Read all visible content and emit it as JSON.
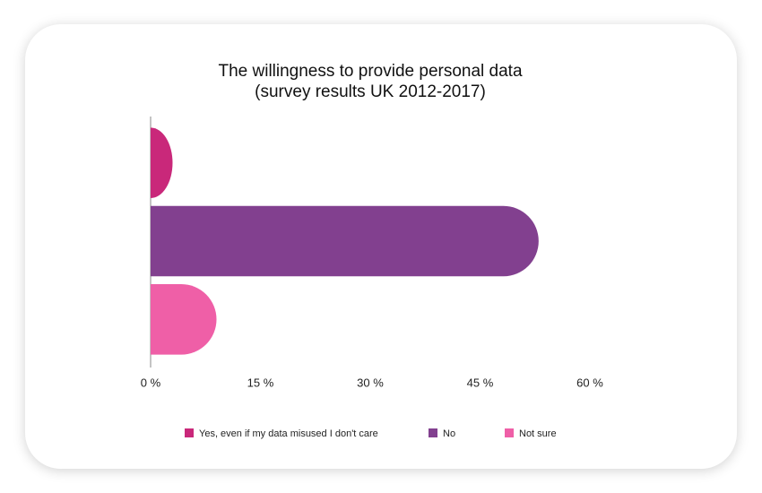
{
  "chart_data": {
    "type": "bar",
    "orientation": "horizontal",
    "title": "The willingness to provide personal data",
    "subtitle": "(survey results UK 2012-2017)",
    "categories": [
      null
    ],
    "series": [
      {
        "name": "Yes, even if my data misused I don't care",
        "color": "#c9287a",
        "values": [
          3
        ]
      },
      {
        "name": "No",
        "color": "#82408f",
        "values": [
          53
        ]
      },
      {
        "name": "Not sure",
        "color": "#ef5fa7",
        "values": [
          9
        ]
      }
    ],
    "xlim": [
      0,
      60
    ],
    "xticks": [
      {
        "value": 0,
        "label": "0 %"
      },
      {
        "value": 15,
        "label": "15 %"
      },
      {
        "value": 30,
        "label": "30 %"
      },
      {
        "value": 45,
        "label": "45 %"
      },
      {
        "value": 60,
        "label": "60 %"
      }
    ],
    "grid": false,
    "legend": "bottom"
  }
}
